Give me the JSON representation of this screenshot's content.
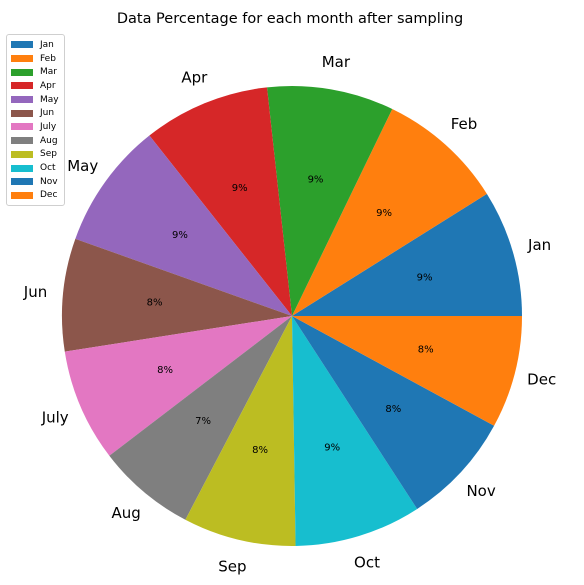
{
  "chart_data": {
    "type": "pie",
    "title": "Data Percentage for each month after sampling",
    "categories": [
      "Jan",
      "Feb",
      "Mar",
      "Apr",
      "May",
      "Jun",
      "July",
      "Aug",
      "Sep",
      "Oct",
      "Nov",
      "Dec"
    ],
    "values": [
      9,
      9,
      9,
      9,
      9,
      8,
      8,
      7,
      8,
      9,
      8,
      8
    ],
    "value_labels": [
      "9%",
      "9%",
      "9%",
      "9%",
      "9%",
      "8%",
      "8%",
      "7%",
      "8%",
      "9%",
      "8%",
      "8%"
    ],
    "colors": [
      "#1f77b4",
      "#ff7f0e",
      "#2ca02c",
      "#d62728",
      "#9467bd",
      "#8c564b",
      "#e377c2",
      "#7f7f7f",
      "#bcbd22",
      "#17becf",
      "#1f77b4",
      "#ff7f0e"
    ],
    "start_angle_deg": 0,
    "direction": "counterclockwise",
    "legend": {
      "placement": "top-left",
      "entries": [
        "Jan",
        "Feb",
        "Mar",
        "Apr",
        "May",
        "Jun",
        "July",
        "Aug",
        "Sep",
        "Oct",
        "Nov",
        "Dec"
      ]
    }
  }
}
